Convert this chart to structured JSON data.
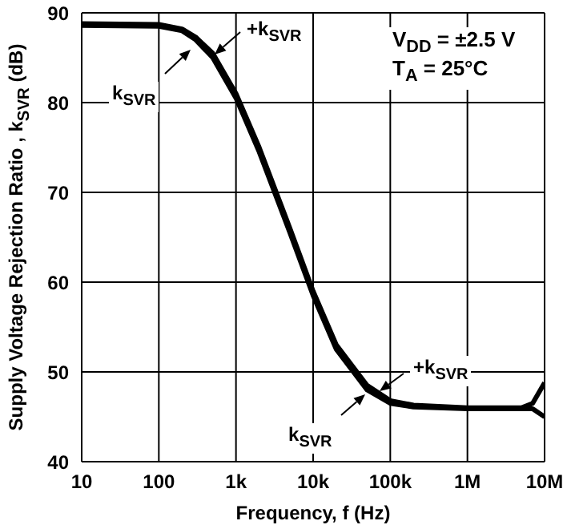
{
  "chart_data": {
    "type": "line",
    "xlabel": "Frequency, f (Hz)",
    "ylabel": "Supply Voltage Rejection Ratio , k$_{SVR}$  (dB)",
    "annotations": [
      "V$_{DD}$ = ±2.5 V",
      "T$_{A}$ = 25°C"
    ],
    "x": [
      10,
      100,
      200,
      300,
      500,
      1000,
      2000,
      5000,
      10000,
      20000,
      50000,
      100000,
      200000,
      1000000,
      5000000,
      7000000,
      10000000
    ],
    "series": [
      {
        "name": "+k$_{SVR}$",
        "color": "#000000",
        "values": [
          88.8,
          88.7,
          88.2,
          87.3,
          85.5,
          81,
          75,
          66,
          59,
          53,
          48.5,
          46.8,
          46.3,
          46,
          46,
          46.5,
          48.8
        ]
      },
      {
        "name": "k$_{SVR}$",
        "color": "#000000",
        "values": [
          88.6,
          88.5,
          88,
          87,
          85,
          80.5,
          74.5,
          65.5,
          58.5,
          52.5,
          48,
          46.5,
          46.1,
          45.9,
          45.9,
          45.9,
          45
        ]
      }
    ],
    "xlim": [
      10,
      10000000
    ],
    "ylim": [
      40,
      90
    ],
    "xticks": [
      {
        "value": 10,
        "label": "10"
      },
      {
        "value": 100,
        "label": "100"
      },
      {
        "value": 1000,
        "label": "1k"
      },
      {
        "value": 10000,
        "label": "10k"
      },
      {
        "value": 100000,
        "label": "100k"
      },
      {
        "value": 1000000,
        "label": "1M"
      },
      {
        "value": 10000000,
        "label": "10M"
      }
    ],
    "yticks": [
      40,
      50,
      60,
      70,
      80,
      90
    ],
    "log": "x",
    "grid": true,
    "marker": "none"
  }
}
